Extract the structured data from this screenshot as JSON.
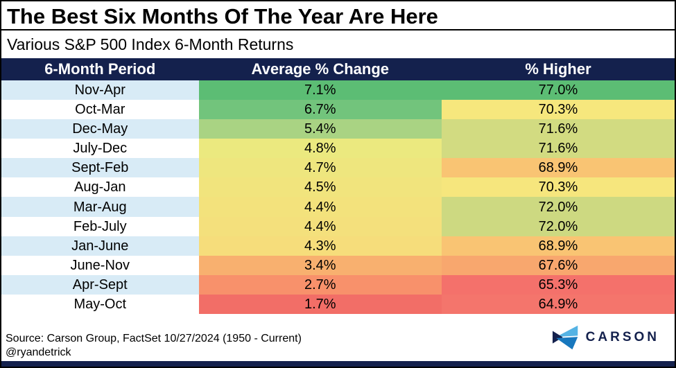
{
  "title": "The Best Six Months Of The Year Are Here",
  "subtitle": "Various S&P 500 Index 6-Month Returns",
  "table": {
    "headers": [
      "6-Month Period",
      "Average % Change",
      "% Higher"
    ],
    "rows": [
      {
        "period": "Nov-Apr",
        "avg": "7.1%",
        "higher": "77.0%",
        "avg_color": "#5cbd74",
        "higher_color": "#5cbd74"
      },
      {
        "period": "Oct-Mar",
        "avg": "6.7%",
        "higher": "70.3%",
        "avg_color": "#72c47c",
        "higher_color": "#f6e77d"
      },
      {
        "period": "Dec-May",
        "avg": "5.4%",
        "higher": "71.6%",
        "avg_color": "#a9d383",
        "higher_color": "#d2db81"
      },
      {
        "period": "July-Dec",
        "avg": "4.8%",
        "higher": "71.6%",
        "avg_color": "#ebe97f",
        "higher_color": "#d2db81"
      },
      {
        "period": "Sept-Feb",
        "avg": "4.7%",
        "higher": "68.9%",
        "avg_color": "#eee67e",
        "higher_color": "#f9c473"
      },
      {
        "period": "Aug-Jan",
        "avg": "4.5%",
        "higher": "70.3%",
        "avg_color": "#f1e47d",
        "higher_color": "#f6e67d"
      },
      {
        "period": "Mar-Aug",
        "avg": "4.4%",
        "higher": "72.0%",
        "avg_color": "#f3e27c",
        "higher_color": "#cdd981"
      },
      {
        "period": "Feb-July",
        "avg": "4.4%",
        "higher": "72.0%",
        "avg_color": "#f4e07c",
        "higher_color": "#cdd981"
      },
      {
        "period": "Jan-June",
        "avg": "4.3%",
        "higher": "68.9%",
        "avg_color": "#f6dd7b",
        "higher_color": "#f9c473"
      },
      {
        "period": "June-Nov",
        "avg": "3.4%",
        "higher": "67.6%",
        "avg_color": "#f8b06f",
        "higher_color": "#f8a76e"
      },
      {
        "period": "Apr-Sept",
        "avg": "2.7%",
        "higher": "65.3%",
        "avg_color": "#f8916b",
        "higher_color": "#f4716b"
      },
      {
        "period": "May-Oct",
        "avg": "1.7%",
        "higher": "64.9%",
        "avg_color": "#f26e67",
        "higher_color": "#f4756c"
      }
    ]
  },
  "footer": {
    "source": "Source: Carson Group, FactSet 10/27/2024 (1950 - Current)",
    "handle": "@ryandetrick",
    "logo_text": "CARSON"
  },
  "colors": {
    "navy": "#14214d",
    "row_alt_blue": "#d8ebf6",
    "row_white": "#ffffff",
    "logo_light_blue": "#55b3e4",
    "logo_mid_blue": "#1878be",
    "best_green": "#5cbd74",
    "worst_red": "#f26e67"
  },
  "chart_data": {
    "type": "table",
    "title": "The Best Six Months Of The Year Are Here",
    "subtitle": "Various S&P 500 Index 6-Month Returns",
    "columns": [
      "6-Month Period",
      "Average % Change",
      "% Higher"
    ],
    "rows": [
      [
        "Nov-Apr",
        7.1,
        77.0
      ],
      [
        "Oct-Mar",
        6.7,
        70.3
      ],
      [
        "Dec-May",
        5.4,
        71.6
      ],
      [
        "July-Dec",
        4.8,
        71.6
      ],
      [
        "Sept-Feb",
        4.7,
        68.9
      ],
      [
        "Aug-Jan",
        4.5,
        70.3
      ],
      [
        "Mar-Aug",
        4.4,
        72.0
      ],
      [
        "Feb-July",
        4.4,
        72.0
      ],
      [
        "Jan-June",
        4.3,
        68.9
      ],
      [
        "June-Nov",
        3.4,
        67.6
      ],
      [
        "Apr-Sept",
        2.7,
        65.3
      ],
      [
        "May-Oct",
        1.7,
        64.9
      ]
    ],
    "units": "percent",
    "note": "Cells conditionally color-coded from green (best) to red (worst); source Carson Group / FactSet 10/27/2024, data 1950 - Current"
  }
}
